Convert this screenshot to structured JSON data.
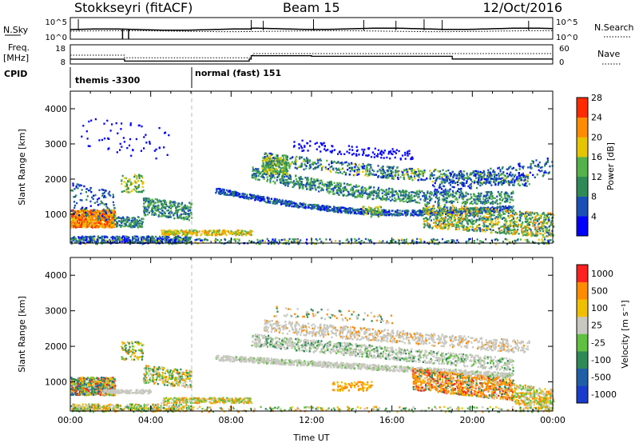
{
  "header": {
    "station": "Stokkseyri (fitACF)",
    "beam": "Beam 15",
    "date": "12/Oct/2016"
  },
  "left_labels": {
    "nsky": "N.Sky",
    "freq": "Freq.",
    "freq_unit": "[MHz]",
    "cpid": "CPID"
  },
  "right_labels": {
    "nsearch": "N.Search",
    "nave": "Nave"
  },
  "modes": [
    {
      "label": "themis -3300",
      "start_hour": 0
    },
    {
      "label": "normal (fast) 151",
      "start_hour": 6
    }
  ],
  "chart_data": [
    {
      "type": "line",
      "panel": "noise",
      "series": [
        {
          "name": "N.Sky"
        },
        {
          "name": "N.Search"
        }
      ],
      "y_tick_labels_left": [
        "10^5",
        "10^0"
      ],
      "y_tick_labels_right": [
        "10^5",
        "10^0"
      ],
      "step_hours": [
        0.4,
        9,
        9.6,
        12.1,
        14.6,
        16.2,
        17.6,
        18.5,
        22.8
      ]
    },
    {
      "type": "line",
      "panel": "frequency",
      "series": [
        {
          "name": "Freq.",
          "x": [
            0,
            2.5,
            2.7,
            8.9,
            9.0,
            12.0,
            18.9,
            19.0,
            24
          ],
          "y": [
            10.5,
            10.5,
            9.5,
            10.5,
            12.3,
            12.0,
            12.0,
            10.6,
            10.6
          ]
        },
        {
          "name": "Nave",
          "x": [
            0,
            2.6,
            2.7,
            9.0,
            9.1,
            24
          ],
          "y": [
            12.6,
            12.6,
            11.2,
            12.6,
            13.4,
            13.4
          ]
        }
      ],
      "y_tick_labels_left": [
        "18",
        "8"
      ],
      "y_tick_labels_right": [
        "60",
        "0"
      ]
    },
    {
      "type": "heatmap",
      "panel": "power",
      "ylabel": "Slant Range [km]",
      "y_ticks": [
        "1000",
        "2000",
        "3000",
        "4000"
      ],
      "ylim": [
        180,
        4500
      ],
      "xlim": [
        0,
        24
      ],
      "colorbar_label": "Power [dB]",
      "colorbar_ticks": [
        "4",
        "8",
        "12",
        "16",
        "20",
        "24",
        "28"
      ],
      "colorbar_colors": [
        "#0000ff",
        "#1a4fb8",
        "#2e8b57",
        "#55b24a",
        "#e5c500",
        "#ff8c00",
        "#ff2a00"
      ]
    },
    {
      "type": "heatmap",
      "panel": "velocity",
      "ylabel": "Slant Range [km]",
      "xlabel": "Time UT",
      "x_ticks": [
        "00:00",
        "04:00",
        "08:00",
        "12:00",
        "16:00",
        "20:00",
        "00:00"
      ],
      "y_ticks": [
        "1000",
        "2000",
        "3000",
        "4000"
      ],
      "ylim": [
        180,
        4500
      ],
      "xlim": [
        0,
        24
      ],
      "colorbar_label": "Velocity [m s⁻¹]",
      "colorbar_ticks": [
        "1000",
        "500",
        "100",
        "25",
        "-25",
        "-100",
        "-500",
        "-1000"
      ],
      "colorbar_colors": [
        "#1a3ccc",
        "#1f5fa8",
        "#2e8b57",
        "#60c040",
        "#c8c8c0",
        "#f0c000",
        "#ff8c00",
        "#ff2020"
      ]
    }
  ]
}
